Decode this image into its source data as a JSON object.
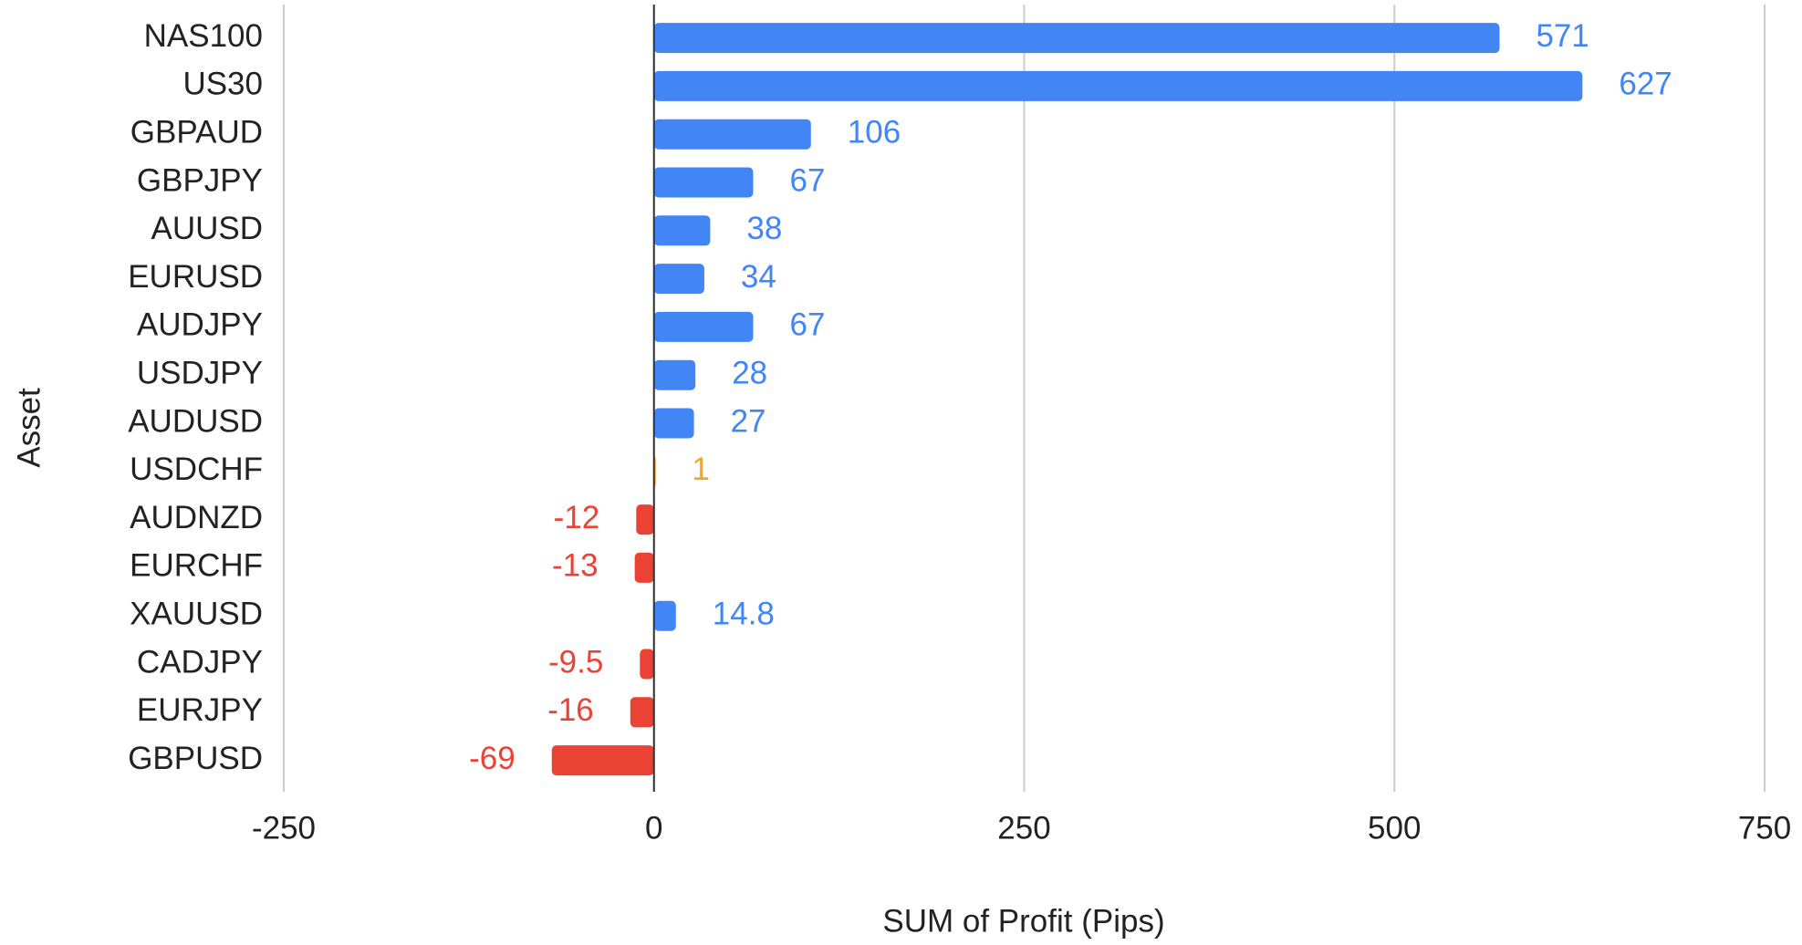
{
  "chart_data": {
    "type": "hbar",
    "x_axis_label": "SUM of Profit (Pips)",
    "y_axis_label": "Asset",
    "categories": [
      "NAS100",
      "US30",
      "GBPAUD",
      "GBPJPY",
      "AUUSD",
      "EURUSD",
      "AUDJPY",
      "USDJPY",
      "AUDUSD",
      "USDCHF",
      "AUDNZD",
      "EURCHF",
      "XAUUSD",
      "CADJPY",
      "EURJPY",
      "GBPUSD"
    ],
    "values": [
      571,
      627,
      106,
      67,
      38,
      34,
      67,
      28,
      27,
      1,
      -12,
      -13,
      14.8,
      -9.5,
      -16,
      -69
    ],
    "colors": [
      "#4285f4",
      "#4285f4",
      "#4285f4",
      "#4285f4",
      "#4285f4",
      "#4285f4",
      "#4285f4",
      "#4285f4",
      "#4285f4",
      "#f6a51c",
      "#ea4335",
      "#ea4335",
      "#4285f4",
      "#ea4335",
      "#ea4335",
      "#ea4335"
    ],
    "xlim": [
      -250,
      750
    ],
    "xticks": [
      -250,
      0,
      250,
      500,
      750
    ],
    "grid": true
  }
}
